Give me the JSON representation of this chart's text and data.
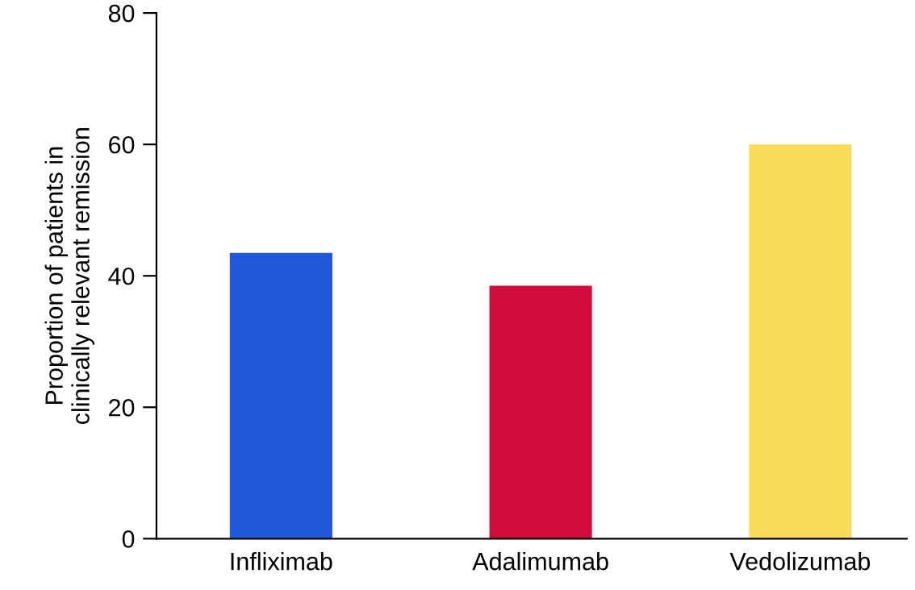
{
  "chart_data": {
    "type": "bar",
    "ylabel": "Proportion of patients in\nclinically relevant remission",
    "categories": [
      "Infliximab",
      "Adalimumab",
      "Vedolizumab"
    ],
    "values": [
      43.5,
      38.5,
      60
    ],
    "colors": [
      "#2157d9",
      "#d20c3c",
      "#f8dc5a"
    ],
    "ylim": [
      0,
      80
    ],
    "yticks": [
      0,
      20,
      40,
      60,
      80
    ],
    "grid": false
  }
}
